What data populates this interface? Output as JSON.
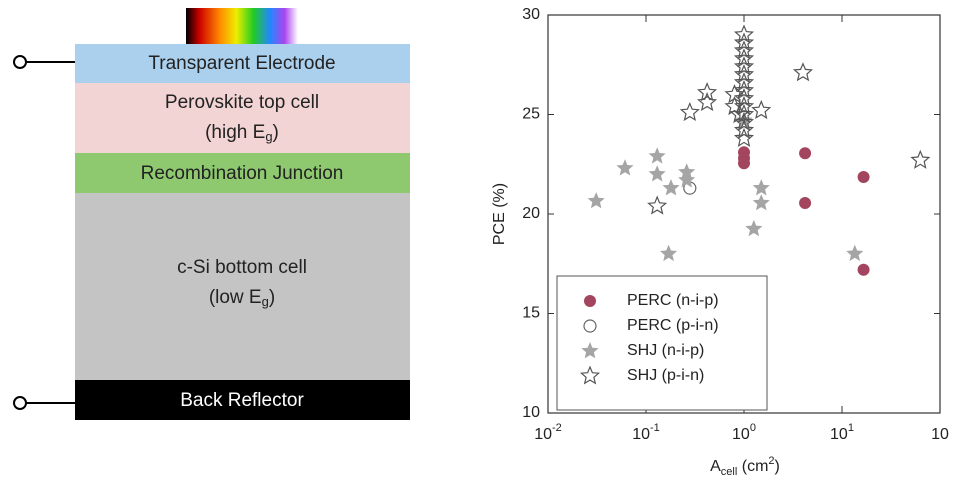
{
  "diagram": {
    "layers": [
      {
        "label": "Transparent Electrode"
      },
      {
        "label": "Perovskite top cell",
        "label2": "(high E",
        "subscript": "g",
        "label2_end": ")"
      },
      {
        "label": "Recombination Junction"
      },
      {
        "label": "c-Si bottom cell",
        "label2": "(low E",
        "subscript": "g",
        "label2_end": ")"
      },
      {
        "label": "Back Reflector"
      }
    ]
  },
  "chart_data": {
    "type": "scatter",
    "xlabel": "A",
    "xlabel_sub": "cell",
    "xlabel_unit": " (cm",
    "xlabel_sup": "2",
    "xlabel_end": ")",
    "ylabel": "PCE (%)",
    "xscale": "log",
    "xlim": [
      0.01,
      100
    ],
    "ylim": [
      10,
      30
    ],
    "xticks": [
      {
        "value": 0.01,
        "label": "10",
        "exponent": "-2"
      },
      {
        "value": 0.1,
        "label": "10",
        "exponent": "-1"
      },
      {
        "value": 1,
        "label": "10",
        "exponent": "0"
      },
      {
        "value": 10,
        "label": "10",
        "exponent": "1"
      },
      {
        "value": 100,
        "label": "10"
      }
    ],
    "yticks": [
      10,
      15,
      20,
      25,
      30
    ],
    "legend": "lower left",
    "series": [
      {
        "name": "PERC (n-i-p)",
        "color": "#a3455f",
        "marker": "circle",
        "filled": true,
        "x": [
          1.0,
          1.0,
          1.0,
          4.2,
          4.2,
          16.6,
          16.6
        ],
        "values": [
          23.1,
          22.8,
          22.55,
          23.05,
          20.55,
          21.86,
          17.2
        ]
      },
      {
        "name": "PERC (p-i-n)",
        "color": "#666666",
        "marker": "circle",
        "filled": false,
        "x": [
          0.28
        ],
        "values": [
          21.3
        ]
      },
      {
        "name": "SHJ (n-i-p)",
        "color": "#a5a5a5",
        "marker": "star",
        "filled": true,
        "x": [
          0.031,
          0.061,
          0.13,
          0.13,
          0.18,
          0.17,
          0.26,
          0.26,
          1.0,
          1.5,
          1.5,
          1.26,
          13.5
        ],
        "values": [
          20.65,
          22.3,
          22.9,
          22.0,
          21.3,
          18.0,
          22.1,
          21.7,
          24.7,
          21.3,
          20.55,
          19.25,
          18.0
        ]
      },
      {
        "name": "SHJ (p-i-n)",
        "color": "#555555",
        "marker": "star",
        "filled": false,
        "x": [
          0.13,
          0.28,
          0.42,
          0.42,
          0.8,
          0.8,
          0.9,
          1.0,
          1.0,
          1.0,
          1.0,
          1.0,
          1.0,
          1.0,
          1.0,
          1.0,
          1.0,
          1.0,
          1.0,
          1.0,
          1.0,
          1.5,
          4.0,
          63
        ],
        "values": [
          20.4,
          25.1,
          26.1,
          25.6,
          26.0,
          25.4,
          25.0,
          29.0,
          28.6,
          28.2,
          27.8,
          27.4,
          27.0,
          26.6,
          26.2,
          25.8,
          25.4,
          25.0,
          24.6,
          24.2,
          23.8,
          25.2,
          27.1,
          22.7
        ]
      }
    ]
  }
}
